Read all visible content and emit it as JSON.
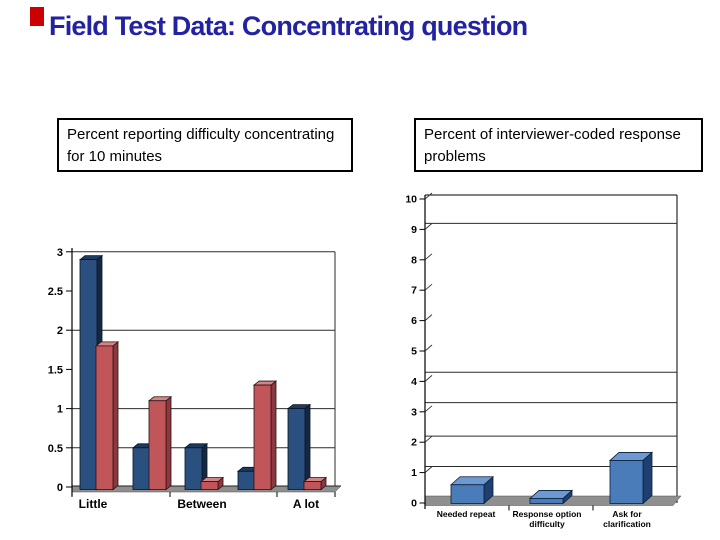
{
  "slide": {
    "title": "Field Test Data: Concentrating question",
    "title_color": "#2222a2",
    "accent_color": "#cc0000",
    "background": "#ffffff"
  },
  "captions": {
    "left": "Percent reporting difficulty concentrating for 10 minutes",
    "right": "Percent of interviewer-coded response problems"
  },
  "chart_data": [
    {
      "type": "bar",
      "style": "3d-clustered",
      "title": "Percent reporting difficulty concentrating for 10 minutes",
      "categories": [
        "Little",
        "",
        "Between",
        "",
        "A lot"
      ],
      "series": [
        {
          "name": "blue-series",
          "values": [
            2.9,
            0.5,
            0.5,
            0.2,
            1.0
          ],
          "colors": {
            "front": "#2a5080",
            "top": "#1d3a60",
            "side": "#142843",
            "stroke": "#0a1424"
          }
        },
        {
          "name": "red-series",
          "values": [
            1.8,
            1.1,
            0.07,
            1.3,
            0.07
          ],
          "colors": {
            "front": "#c1565a",
            "top": "#d28584",
            "side": "#8a3a3e",
            "stroke": "#2e1012"
          }
        }
      ],
      "ylim": [
        0,
        3
      ],
      "ytick_values": [
        0,
        0.5,
        1,
        1.5,
        2,
        2.5,
        3
      ],
      "ytick_labels": [
        "0",
        "0.5",
        "1",
        "1.5",
        "2",
        "2.5",
        "3"
      ],
      "gridlines_at": [
        0.5,
        1,
        2,
        3
      ],
      "legend": "none",
      "grid": "partial-horizontal",
      "floor_color": "#8f8f8f"
    },
    {
      "type": "bar",
      "style": "3d",
      "title": "Percent of interviewer-coded response problems",
      "categories": [
        "Needed repeat",
        "Response option\ndifficulty",
        "Ask for\nclarification"
      ],
      "series": [
        {
          "name": "blue-series",
          "values": [
            0.6,
            0.15,
            1.4
          ],
          "colors": {
            "front": "#4a7cba",
            "top": "#6b99d0",
            "side": "#1e3f6f",
            "stroke": "#0b1e3a"
          }
        }
      ],
      "ylim": [
        0,
        10
      ],
      "ytick_values": [
        0,
        1,
        2,
        3,
        4,
        5,
        6,
        7,
        8,
        9,
        10
      ],
      "ytick_labels": [
        "0",
        "1",
        "2",
        "3",
        "4",
        "5",
        "6",
        "7",
        "8",
        "9",
        "10"
      ],
      "gridlines_at": [
        1.2,
        2.2,
        3.3,
        4.3,
        9.2
      ],
      "legend": "none",
      "grid": "partial-horizontal",
      "floor_color": "#8f8f8f"
    }
  ]
}
